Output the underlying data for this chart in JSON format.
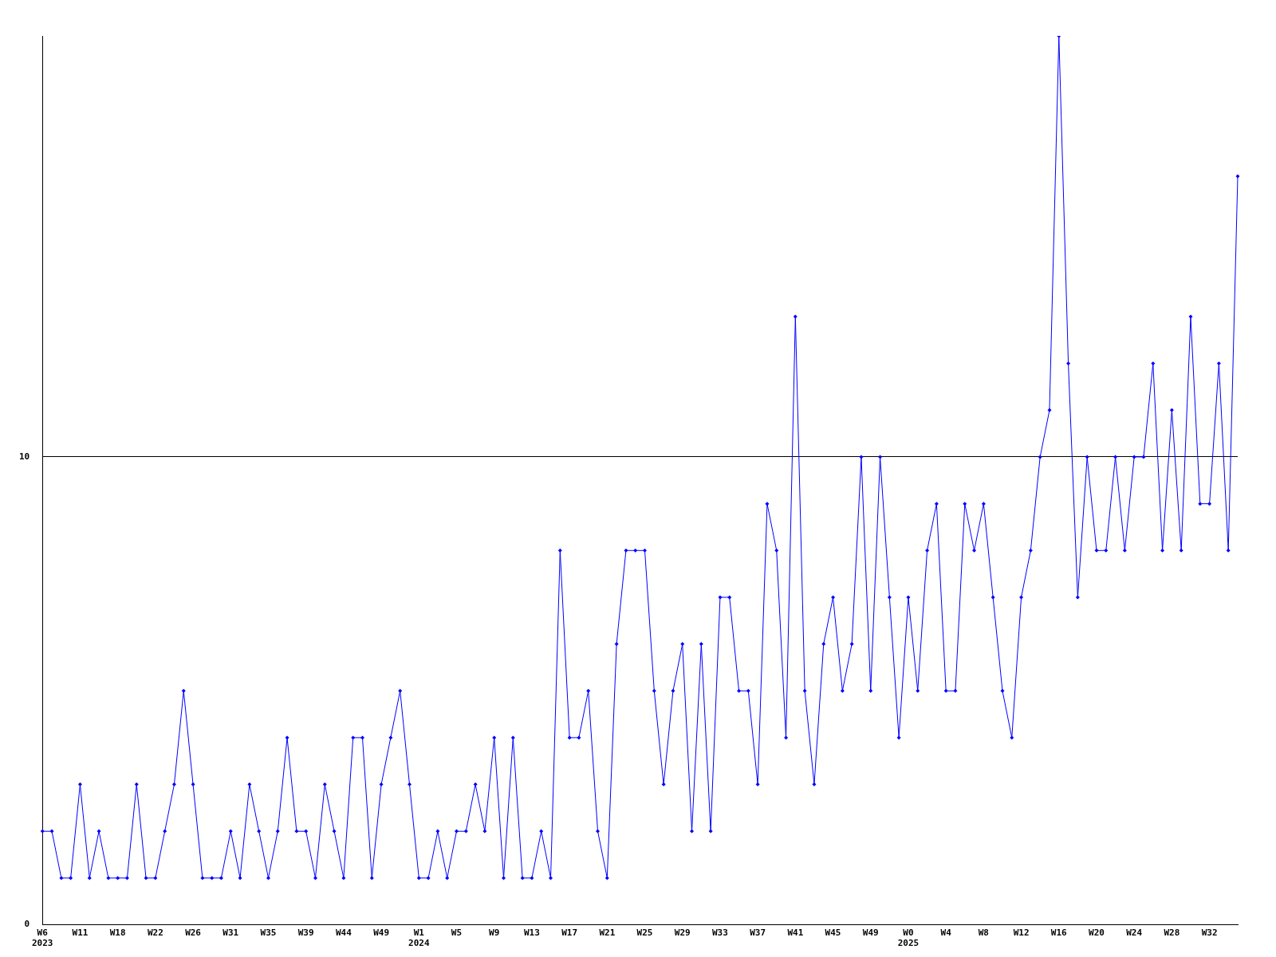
{
  "chart_data": {
    "type": "line",
    "categories": [
      "W6\n2023",
      null,
      null,
      null,
      "W11",
      null,
      null,
      null,
      "W18",
      null,
      null,
      null,
      "W22",
      null,
      null,
      null,
      "W26",
      null,
      null,
      null,
      "W31",
      null,
      null,
      null,
      "W35",
      null,
      null,
      null,
      "W39",
      null,
      null,
      null,
      "W44",
      null,
      null,
      null,
      "W49",
      null,
      null,
      null,
      "W1\n2024",
      null,
      null,
      null,
      "W5",
      null,
      null,
      null,
      "W9",
      null,
      null,
      null,
      "W13",
      null,
      null,
      null,
      "W17",
      null,
      null,
      null,
      "W21",
      null,
      null,
      null,
      "W25",
      null,
      null,
      null,
      "W29",
      null,
      null,
      null,
      "W33",
      null,
      null,
      null,
      "W37",
      null,
      null,
      null,
      "W41",
      null,
      null,
      null,
      "W45",
      null,
      null,
      null,
      "W49",
      null,
      null,
      null,
      "W0\n2025",
      null,
      null,
      null,
      "W4",
      null,
      null,
      null,
      "W8",
      null,
      null,
      null,
      "W12",
      null,
      null,
      null,
      "W16",
      null,
      null,
      null,
      "W20",
      null,
      null,
      null,
      "W24",
      null,
      null,
      null,
      "W28",
      null,
      null,
      null,
      "W32",
      null,
      null,
      null
    ],
    "series": [
      {
        "color": "#0000ff",
        "values": [
          2,
          2,
          1,
          1,
          3,
          1,
          2,
          1,
          1,
          1,
          3,
          1,
          1,
          2,
          3,
          5,
          3,
          1,
          1,
          1,
          2,
          1,
          3,
          2,
          1,
          2,
          4,
          2,
          2,
          1,
          3,
          2,
          1,
          4,
          4,
          1,
          3,
          4,
          5,
          3,
          1,
          1,
          2,
          1,
          2,
          2,
          3,
          2,
          4,
          1,
          4,
          1,
          1,
          2,
          1,
          8,
          4,
          4,
          5,
          2,
          1,
          6,
          8,
          8,
          8,
          5,
          3,
          5,
          6,
          2,
          6,
          2,
          7,
          7,
          5,
          5,
          3,
          9,
          8,
          4,
          13,
          5,
          3,
          6,
          7,
          5,
          6,
          10,
          5,
          10,
          7,
          4,
          7,
          5,
          8,
          9,
          5,
          5,
          9,
          8,
          9,
          7,
          5,
          4,
          7,
          8,
          10,
          11,
          19,
          12,
          7,
          10,
          8,
          8,
          10,
          8,
          10,
          10,
          12,
          8,
          11,
          8,
          13,
          9,
          9,
          12,
          8,
          16
        ]
      }
    ],
    "ylim": [
      0,
      19
    ],
    "yticks": [
      0,
      10
    ],
    "grid": "y",
    "legend": false,
    "marker": "diamond",
    "line_style": "solid"
  }
}
